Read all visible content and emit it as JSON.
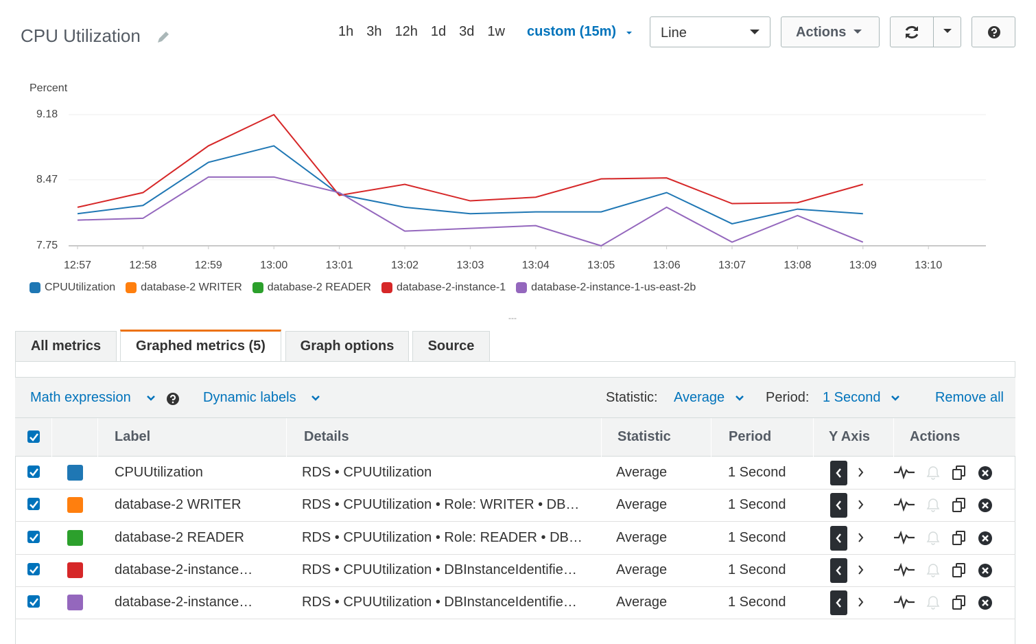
{
  "header": {
    "title": "CPU Utilization",
    "time_ranges": [
      "1h",
      "3h",
      "12h",
      "1d",
      "3d",
      "1w"
    ],
    "custom_range": "custom (15m)",
    "chart_type": "Line",
    "actions": "Actions"
  },
  "chart_data": {
    "type": "line",
    "y_label": "Percent",
    "categories": [
      "12:57",
      "12:58",
      "12:59",
      "13:00",
      "13:01",
      "13:02",
      "13:03",
      "13:04",
      "13:05",
      "13:06",
      "13:07",
      "13:08",
      "13:09",
      "13:10"
    ],
    "series": [
      {
        "name": "CPUUtilization",
        "color": "#1f77b4",
        "values": [
          8.1,
          8.19,
          8.66,
          8.84,
          8.31,
          8.17,
          8.1,
          8.12,
          8.12,
          8.33,
          7.99,
          8.15,
          8.1,
          null
        ]
      },
      {
        "name": "database-2 WRITER",
        "color": "#ff7f0e",
        "values": [
          null,
          null,
          null,
          null,
          null,
          null,
          null,
          null,
          null,
          null,
          null,
          null,
          null,
          null
        ]
      },
      {
        "name": "database-2 READER",
        "color": "#2ca02c",
        "values": [
          null,
          null,
          null,
          null,
          null,
          null,
          null,
          null,
          null,
          null,
          null,
          null,
          null,
          null
        ]
      },
      {
        "name": "database-2-instance-1",
        "color": "#d62728",
        "values": [
          8.17,
          8.33,
          8.84,
          9.18,
          8.3,
          8.42,
          8.24,
          8.28,
          8.48,
          8.49,
          8.21,
          8.22,
          8.42,
          null
        ]
      },
      {
        "name": "database-2-instance-1-us-east-2b",
        "color": "#9467bd",
        "values": [
          8.03,
          8.05,
          8.5,
          8.5,
          8.33,
          7.91,
          7.94,
          7.97,
          7.75,
          8.17,
          7.79,
          8.08,
          7.79,
          null
        ]
      }
    ],
    "ylim": [
      7.75,
      9.18
    ],
    "yticks": [
      7.75,
      8.47,
      9.18
    ],
    "grid": true
  },
  "divider": "---",
  "tabs": [
    "All metrics",
    "Graphed metrics (5)",
    "Graph options",
    "Source"
  ],
  "toolbar": {
    "math_expression": "Math expression",
    "dynamic_labels": "Dynamic labels",
    "statistic_label": "Statistic:",
    "statistic": "Average",
    "period_label": "Period:",
    "period": "1 Second",
    "remove_all": "Remove all"
  },
  "table": {
    "columns": [
      "Label",
      "Details",
      "Statistic",
      "Period",
      "Y Axis",
      "Actions"
    ],
    "rows": [
      [
        "CPUUtilization",
        "RDS • CPUUtilization",
        "Average",
        "1 Second"
      ],
      [
        "database-2 WRITER",
        "RDS • CPUUtilization • Role: WRITER • DB…",
        "Average",
        "1 Second"
      ],
      [
        "database-2 READER",
        "RDS • CPUUtilization • Role: READER • DB…",
        "Average",
        "1 Second"
      ],
      [
        "database-2-instance…",
        "RDS • CPUUtilization • DBInstanceIdentifie…",
        "Average",
        "1 Second"
      ],
      [
        "database-2-instance…",
        "RDS • CPUUtilization • DBInstanceIdentifie…",
        "Average",
        "1 Second"
      ]
    ]
  }
}
